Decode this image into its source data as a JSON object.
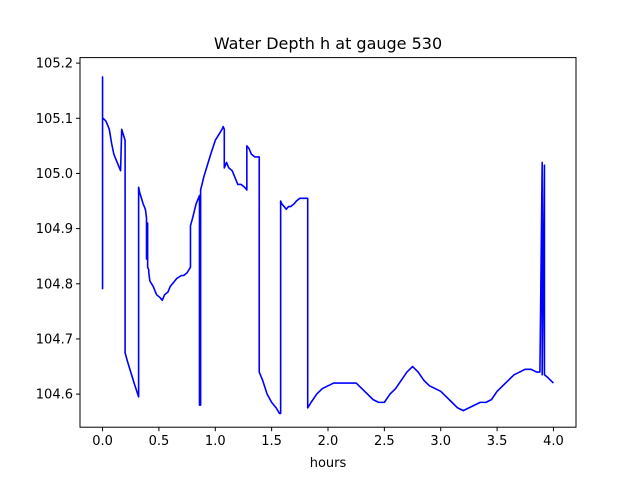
{
  "chart_data": {
    "type": "line",
    "title": "Water Depth h at gauge 530",
    "xlabel": "hours",
    "ylabel": "",
    "xlim": [
      -0.2,
      4.2
    ],
    "ylim": [
      104.54,
      105.21
    ],
    "grid": false,
    "x_ticks": [
      0.0,
      0.5,
      1.0,
      1.5,
      2.0,
      2.5,
      3.0,
      3.5,
      4.0
    ],
    "x_tick_labels": [
      "0.0",
      "0.5",
      "1.0",
      "1.5",
      "2.0",
      "2.5",
      "3.0",
      "3.5",
      "4.0"
    ],
    "y_ticks": [
      104.6,
      104.7,
      104.8,
      104.9,
      105.0,
      105.1,
      105.2
    ],
    "y_tick_labels": [
      "104.6",
      "104.7",
      "104.8",
      "104.9",
      "105.0",
      "105.1",
      "105.2"
    ],
    "series": [
      {
        "color": "#0000ff",
        "x": [
          0.0,
          0.0,
          0.0,
          0.005,
          0.03,
          0.06,
          0.08,
          0.1,
          0.13,
          0.16,
          0.17,
          0.17,
          0.2,
          0.2,
          0.22,
          0.25,
          0.28,
          0.32,
          0.32,
          0.33,
          0.36,
          0.38,
          0.39,
          0.39,
          0.4,
          0.4,
          0.41,
          0.41,
          0.42,
          0.45,
          0.48,
          0.51,
          0.53,
          0.55,
          0.58,
          0.6,
          0.62,
          0.66,
          0.7,
          0.72,
          0.75,
          0.78,
          0.78,
          0.8,
          0.83,
          0.86,
          0.86,
          0.87,
          0.87,
          0.9,
          0.93,
          0.96,
          1.0,
          1.03,
          1.06,
          1.07,
          1.08,
          1.08,
          1.1,
          1.12,
          1.15,
          1.18,
          1.2,
          1.23,
          1.26,
          1.28,
          1.28,
          1.3,
          1.32,
          1.35,
          1.38,
          1.39,
          1.39,
          1.42,
          1.46,
          1.5,
          1.54,
          1.57,
          1.58,
          1.58,
          1.59,
          1.61,
          1.63,
          1.65,
          1.67,
          1.7,
          1.72,
          1.75,
          1.78,
          1.8,
          1.82,
          1.82,
          1.85,
          1.9,
          1.95,
          2.0,
          2.05,
          2.1,
          2.15,
          2.2,
          2.25,
          2.3,
          2.35,
          2.4,
          2.45,
          2.5,
          2.55,
          2.6,
          2.65,
          2.7,
          2.75,
          2.8,
          2.85,
          2.9,
          2.95,
          3.0,
          3.05,
          3.1,
          3.15,
          3.2,
          3.25,
          3.3,
          3.35,
          3.4,
          3.45,
          3.5,
          3.55,
          3.6,
          3.65,
          3.7,
          3.75,
          3.8,
          3.85,
          3.88,
          3.9,
          3.9,
          3.92,
          3.92,
          3.95,
          4.0
        ],
        "y": [
          104.79,
          105.175,
          105.1,
          105.1,
          105.095,
          105.08,
          105.055,
          105.035,
          105.02,
          105.005,
          105.08,
          105.08,
          105.06,
          104.675,
          104.66,
          104.64,
          104.62,
          104.595,
          104.975,
          104.965,
          104.945,
          104.935,
          104.92,
          104.845,
          104.91,
          104.83,
          104.825,
          104.82,
          104.805,
          104.795,
          104.78,
          104.775,
          104.77,
          104.78,
          104.785,
          104.795,
          104.8,
          104.81,
          104.815,
          104.815,
          104.82,
          104.83,
          104.905,
          104.92,
          104.945,
          104.96,
          104.58,
          104.58,
          104.97,
          104.995,
          105.015,
          105.035,
          105.06,
          105.07,
          105.08,
          105.085,
          105.08,
          105.01,
          105.02,
          105.01,
          105.005,
          104.99,
          104.98,
          104.98,
          104.975,
          104.97,
          105.05,
          105.045,
          105.035,
          105.03,
          105.03,
          105.03,
          104.64,
          104.625,
          104.6,
          104.585,
          104.575,
          104.565,
          104.565,
          104.95,
          104.945,
          104.94,
          104.935,
          104.94,
          104.94,
          104.945,
          104.95,
          104.955,
          104.955,
          104.955,
          104.955,
          104.575,
          104.585,
          104.6,
          104.61,
          104.615,
          104.62,
          104.62,
          104.62,
          104.62,
          104.62,
          104.61,
          104.6,
          104.59,
          104.585,
          104.585,
          104.6,
          104.61,
          104.625,
          104.64,
          104.65,
          104.64,
          104.625,
          104.615,
          104.61,
          104.605,
          104.595,
          104.585,
          104.575,
          104.57,
          104.575,
          104.58,
          104.585,
          104.585,
          104.59,
          104.605,
          104.615,
          104.625,
          104.635,
          104.64,
          104.645,
          104.645,
          104.64,
          104.64,
          105.02,
          104.635,
          105.015,
          104.635,
          104.63,
          104.62
        ]
      }
    ]
  }
}
